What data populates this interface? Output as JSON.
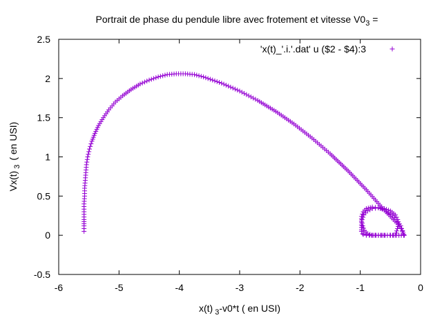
{
  "chart_data": {
    "type": "scatter",
    "title": "Portrait de phase du pendule libre avec frotement et vitesse V0",
    "title_subscript": "3",
    "title_suffix": " =",
    "xlabel": "x(t)",
    "xlabel_subscript": "3",
    "xlabel_suffix": "-v0*t ( en USI)",
    "ylabel": "Vx(t)",
    "ylabel_subscript": "3",
    "ylabel_suffix": "( en USI)",
    "xlim": [
      -6,
      0
    ],
    "ylim": [
      -0.5,
      2.5
    ],
    "x_ticks": [
      -6,
      -5,
      -4,
      -3,
      -2,
      -1,
      0
    ],
    "y_ticks": [
      -0.5,
      0,
      0.5,
      1,
      1.5,
      2,
      2.5
    ],
    "x_tick_labels": [
      "-6",
      "-5",
      "-4",
      "-3",
      "-2",
      "-1",
      "0"
    ],
    "y_tick_labels": [
      "-0.5",
      "0",
      "0.5",
      "1",
      "1.5",
      "2",
      "2.5"
    ],
    "grid": false,
    "legend_position": "top-right",
    "marker": "+",
    "series": [
      {
        "name": "'x(t)_'.i.'.dat' u ($2 - $4):3",
        "color": "#9400d3",
        "x": [
          -5.58,
          -5.58,
          -5.58,
          -5.58,
          -5.58,
          -5.57,
          -5.57,
          -5.56,
          -5.55,
          -5.54,
          -5.52,
          -5.49,
          -5.45,
          -5.4,
          -5.34,
          -5.26,
          -5.17,
          -5.06,
          -4.94,
          -4.8,
          -4.65,
          -4.5,
          -4.35,
          -4.2,
          -4.05,
          -3.9,
          -3.75,
          -3.6,
          -3.45,
          -3.3,
          -3.15,
          -3.0,
          -2.85,
          -2.7,
          -2.55,
          -2.4,
          -2.25,
          -2.1,
          -1.95,
          -1.8,
          -1.65,
          -1.5,
          -1.35,
          -1.2,
          -1.05,
          -0.9,
          -0.75,
          -0.6,
          -0.45,
          -0.35,
          -0.3,
          -0.28,
          -0.32,
          -0.4,
          -0.5,
          -0.6,
          -0.7,
          -0.8,
          -0.88,
          -0.93,
          -0.96,
          -0.98,
          -0.98,
          -0.95,
          -0.9,
          -0.8,
          -0.7,
          -0.6,
          -0.5,
          -0.4,
          -0.33,
          -0.3,
          -0.28,
          -0.27,
          -0.28,
          -0.32,
          -0.4,
          -0.5,
          -0.6,
          -0.7,
          -0.8,
          -0.9,
          -0.96,
          -0.98,
          -0.98,
          -0.97,
          -0.94,
          -0.88,
          -0.8,
          -0.7,
          -0.6,
          -0.5,
          -0.42,
          -0.38,
          -0.36,
          -0.42,
          -0.55,
          -0.7,
          -0.85,
          -0.95,
          -0.98,
          -0.97
        ],
        "y": [
          0.05,
          0.12,
          0.2,
          0.3,
          0.4,
          0.5,
          0.6,
          0.7,
          0.8,
          0.9,
          1.0,
          1.1,
          1.2,
          1.3,
          1.4,
          1.5,
          1.6,
          1.7,
          1.78,
          1.86,
          1.93,
          1.98,
          2.02,
          2.05,
          2.06,
          2.06,
          2.05,
          2.02,
          1.98,
          1.94,
          1.89,
          1.84,
          1.78,
          1.72,
          1.65,
          1.58,
          1.5,
          1.42,
          1.33,
          1.24,
          1.14,
          1.04,
          0.93,
          0.82,
          0.7,
          0.58,
          0.45,
          0.32,
          0.2,
          0.12,
          0.06,
          0.0,
          0.0,
          0.0,
          0.0,
          0.0,
          0.0,
          0.0,
          0.02,
          0.06,
          0.12,
          0.18,
          0.24,
          0.3,
          0.34,
          0.36,
          0.35,
          0.32,
          0.27,
          0.2,
          0.12,
          0.05,
          0.01,
          0.0,
          0.0,
          0.0,
          0.0,
          0.0,
          0.0,
          0.0,
          0.0,
          0.0,
          0.02,
          0.07,
          0.13,
          0.2,
          0.26,
          0.31,
          0.34,
          0.35,
          0.34,
          0.31,
          0.26,
          0.2,
          0.14,
          0.0,
          0.0,
          0.0,
          0.0,
          0.01,
          0.05,
          0.1
        ]
      }
    ]
  }
}
